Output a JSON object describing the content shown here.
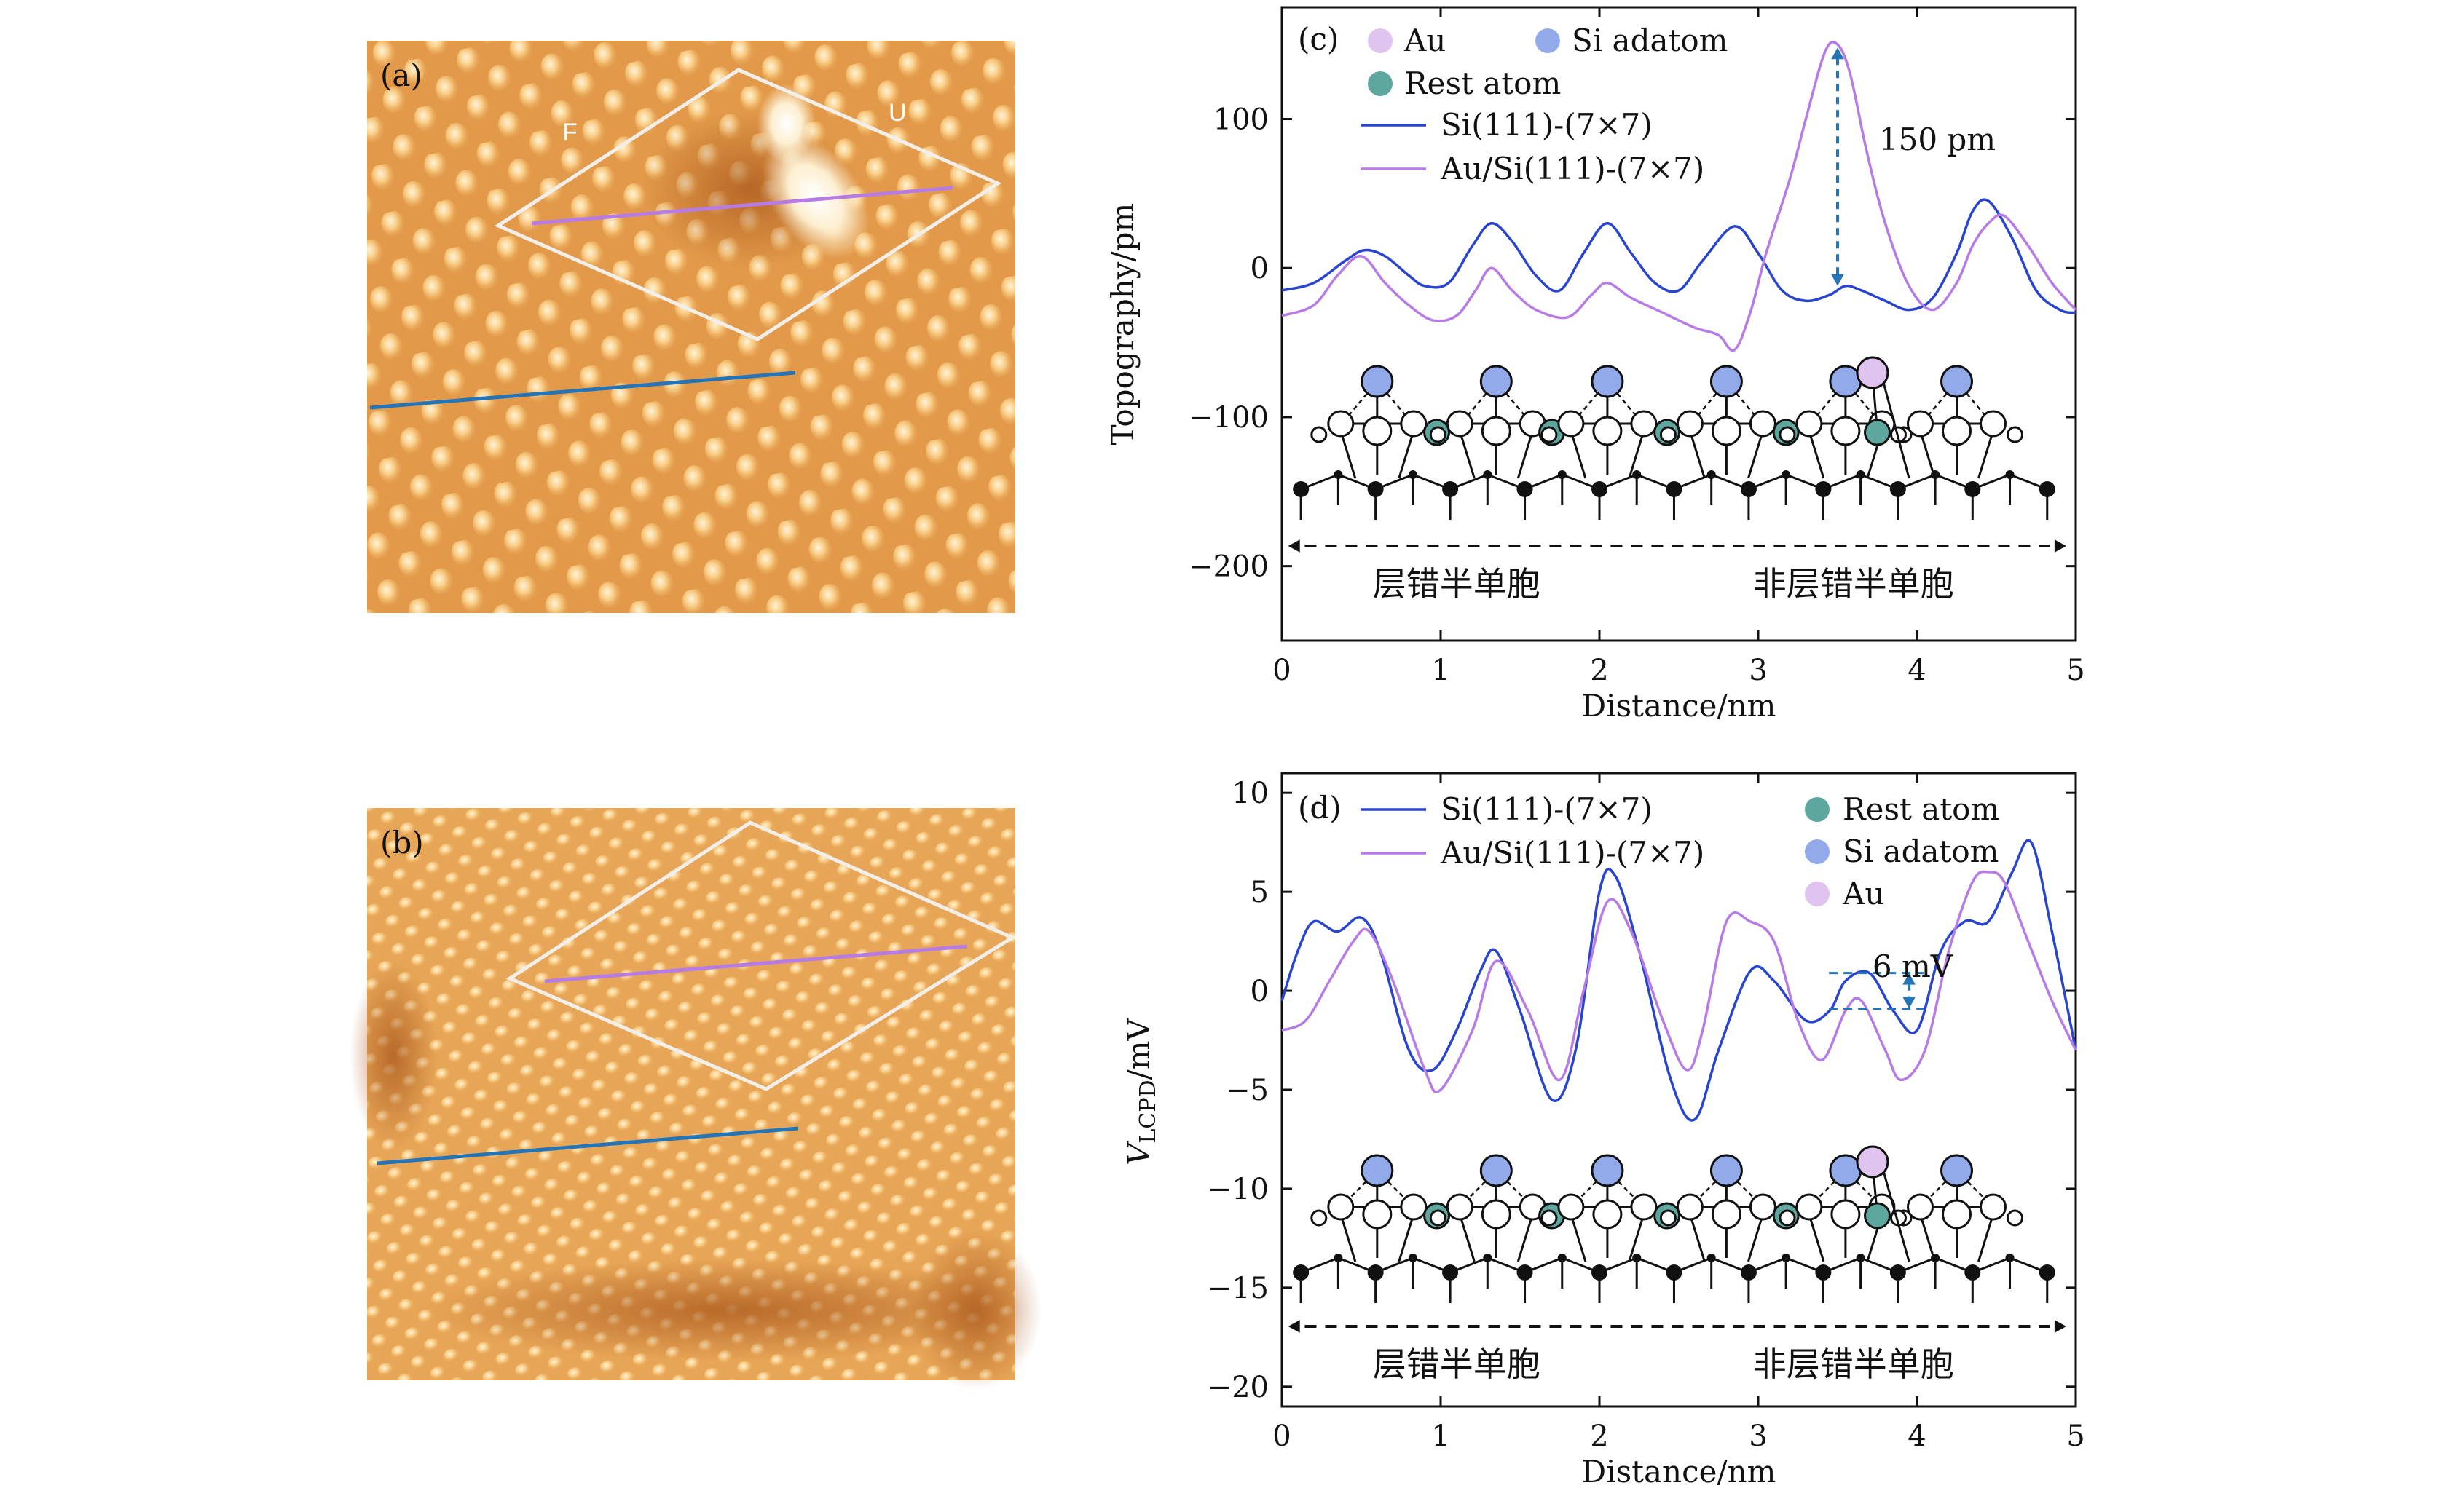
{
  "colors": {
    "si_line": "#2844d0",
    "au_line": "#b77be6",
    "au_atom": "#dfc4ef",
    "si_adatom": "#93aaea",
    "rest_atom": "#5da79e",
    "annotation": "#2474b8",
    "scan_line_blue": "#2474b8",
    "scan_line_purple": "#b77be6",
    "unit_cell": "#f2efea",
    "surface_base": "#e9a95a"
  },
  "images": {
    "a": {
      "label": "(a)",
      "letter_f": "F",
      "letter_u": "U"
    },
    "b": {
      "label": "(b)"
    }
  },
  "chart_data": [
    {
      "panel": "(c)",
      "type": "line",
      "xlabel": "Distance/nm",
      "ylabel": "Topography/pm",
      "xlim": [
        0,
        5
      ],
      "ylim": [
        -250,
        175
      ],
      "xticks": [
        0,
        1,
        2,
        3,
        4,
        5
      ],
      "yticks": [
        100,
        0,
        -100,
        -200
      ],
      "ytick_labels": [
        "100",
        "0",
        "−100",
        "−200"
      ],
      "legend": {
        "au": "Au",
        "si_adatom": "Si adatom",
        "rest_atom": "Rest atom",
        "si_series": "Si(111)-(7×7)",
        "au_series": "Au/Si(111)-(7×7)"
      },
      "annotation": {
        "text": "150 pm",
        "x": 3.5,
        "y_top": 148,
        "y_bottom": -12
      },
      "regions": {
        "faulted": "层错半单胞",
        "unfaulted": "非层错半单胞"
      },
      "series": [
        {
          "name": "Si(111)-(7×7)",
          "x": [
            0,
            0.2,
            0.4,
            0.52,
            0.65,
            0.8,
            0.9,
            1.05,
            1.2,
            1.32,
            1.45,
            1.6,
            1.75,
            1.9,
            2.05,
            2.2,
            2.35,
            2.5,
            2.65,
            2.85,
            3.0,
            3.15,
            3.3,
            3.45,
            3.55,
            3.65,
            3.8,
            3.95,
            4.1,
            4.25,
            4.35,
            4.45,
            4.6,
            4.75,
            4.9,
            5.0
          ],
          "values": [
            -15,
            -10,
            5,
            12,
            8,
            -5,
            -12,
            -10,
            15,
            30,
            18,
            -5,
            -15,
            10,
            30,
            10,
            -10,
            -15,
            5,
            28,
            10,
            -15,
            -22,
            -18,
            -12,
            -15,
            -22,
            -28,
            -20,
            10,
            38,
            45,
            20,
            -15,
            -28,
            -30
          ]
        },
        {
          "name": "Au/Si(111)-(7×7)",
          "x": [
            0,
            0.2,
            0.35,
            0.5,
            0.65,
            0.8,
            0.95,
            1.1,
            1.22,
            1.32,
            1.45,
            1.6,
            1.8,
            1.95,
            2.05,
            2.2,
            2.4,
            2.6,
            2.75,
            2.85,
            2.95,
            3.05,
            3.2,
            3.3,
            3.42,
            3.5,
            3.58,
            3.68,
            3.8,
            3.95,
            4.1,
            4.25,
            4.35,
            4.45,
            4.55,
            4.7,
            4.85,
            5.0
          ],
          "values": [
            -32,
            -25,
            -5,
            8,
            -10,
            -25,
            -35,
            -32,
            -15,
            0,
            -15,
            -28,
            -33,
            -18,
            -10,
            -20,
            -30,
            -40,
            -45,
            -55,
            -30,
            10,
            60,
            100,
            145,
            150,
            130,
            80,
            30,
            -12,
            -28,
            -10,
            15,
            30,
            35,
            15,
            -10,
            -28
          ]
        }
      ]
    },
    {
      "panel": "(d)",
      "type": "line",
      "xlabel": "Distance/nm",
      "ylabel_main": "V",
      "ylabel_sub": "LCPD",
      "ylabel_unit": "/mV",
      "xlim": [
        0,
        5
      ],
      "ylim": [
        -21,
        11
      ],
      "xticks": [
        0,
        1,
        2,
        3,
        4,
        5
      ],
      "yticks": [
        10,
        5,
        0,
        -5,
        -10,
        -15,
        -20
      ],
      "ytick_labels": [
        "10",
        "5",
        "0",
        "−5",
        "−10",
        "−15",
        "−20"
      ],
      "legend": {
        "si_series": "Si(111)-(7×7)",
        "au_series": "Au/Si(111)-(7×7)",
        "rest_atom": "Rest atom",
        "si_adatom": "Si adatom",
        "au": "Au"
      },
      "annotation": {
        "text": "6 mV",
        "x": 3.95,
        "y_top": 0.9,
        "y_bottom": -0.9
      },
      "regions": {
        "faulted": "层错半单胞",
        "unfaulted": "非层错半单胞"
      },
      "series": [
        {
          "name": "Si(111)-(7×7)",
          "x": [
            0,
            0.1,
            0.2,
            0.35,
            0.5,
            0.62,
            0.8,
            0.95,
            1.1,
            1.25,
            1.35,
            1.5,
            1.7,
            1.85,
            2.0,
            2.1,
            2.25,
            2.45,
            2.6,
            2.75,
            2.95,
            3.1,
            3.3,
            3.45,
            3.55,
            3.7,
            3.85,
            4.0,
            4.15,
            4.3,
            4.45,
            4.6,
            4.72,
            4.85,
            5.0
          ],
          "values": [
            -0.5,
            2,
            3.5,
            3,
            3.7,
            2,
            -3,
            -4,
            -2,
            1,
            2,
            -1,
            -5.5,
            -3,
            5,
            5.8,
            2,
            -4.5,
            -6.5,
            -3,
            1,
            0.5,
            -1.5,
            -1,
            0.5,
            0.9,
            -1,
            -2,
            2,
            3.5,
            3.5,
            6,
            7.5,
            3,
            -3
          ]
        },
        {
          "name": "Au/Si(111)-(7×7)",
          "x": [
            0,
            0.15,
            0.3,
            0.45,
            0.55,
            0.7,
            0.9,
            1.0,
            1.2,
            1.35,
            1.55,
            1.75,
            1.9,
            2.05,
            2.2,
            2.4,
            2.55,
            2.65,
            2.8,
            2.95,
            3.1,
            3.25,
            3.4,
            3.55,
            3.65,
            3.8,
            3.9,
            4.05,
            4.2,
            4.35,
            4.45,
            4.55,
            4.7,
            4.85,
            5.0
          ],
          "values": [
            -2,
            -1.5,
            0.5,
            2.5,
            3,
            0.5,
            -4,
            -5,
            -2,
            1.5,
            -1,
            -4.5,
            0,
            4.5,
            3,
            -1.5,
            -4,
            -2,
            3.5,
            3.5,
            2.5,
            -1.5,
            -3.5,
            -1,
            -0.5,
            -3,
            -4.5,
            -3,
            2,
            5.5,
            6,
            5.5,
            2.5,
            -0.5,
            -3
          ]
        }
      ]
    }
  ]
}
